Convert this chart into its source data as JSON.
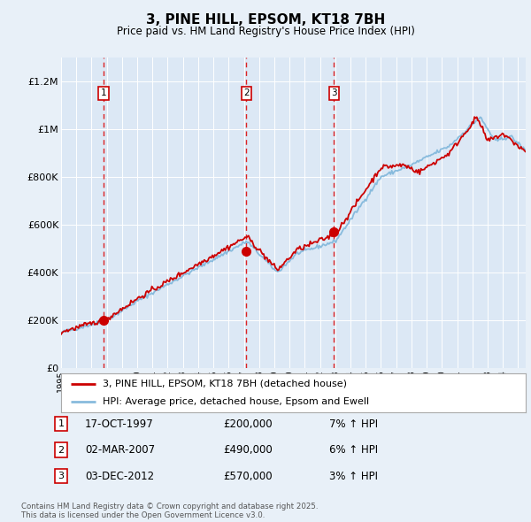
{
  "title": "3, PINE HILL, EPSOM, KT18 7BH",
  "subtitle": "Price paid vs. HM Land Registry's House Price Index (HPI)",
  "background_color": "#e8f0f8",
  "plot_bg_color": "#dce8f5",
  "hpi_line_color": "#88bbdd",
  "price_line_color": "#cc0000",
  "sale_marker_color": "#cc0000",
  "sale_marker_size": 7,
  "ylim": [
    0,
    1300000
  ],
  "yticks": [
    0,
    200000,
    400000,
    600000,
    800000,
    1000000,
    1200000
  ],
  "ytick_labels": [
    "£0",
    "£200K",
    "£400K",
    "£600K",
    "£800K",
    "£1M",
    "£1.2M"
  ],
  "legend_label_price": "3, PINE HILL, EPSOM, KT18 7BH (detached house)",
  "legend_label_hpi": "HPI: Average price, detached house, Epsom and Ewell",
  "sales": [
    {
      "num": 1,
      "date_dec": 1997.79,
      "price": 200000,
      "label": "17-OCT-1997",
      "pct": "7%"
    },
    {
      "num": 2,
      "date_dec": 2007.17,
      "price": 490000,
      "label": "02-MAR-2007",
      "pct": "6%"
    },
    {
      "num": 3,
      "date_dec": 2012.92,
      "price": 570000,
      "label": "03-DEC-2012",
      "pct": "3%"
    }
  ],
  "footnote": "Contains HM Land Registry data © Crown copyright and database right 2025.\nThis data is licensed under the Open Government Licence v3.0.",
  "start_year": 1995.0,
  "end_year": 2025.5
}
